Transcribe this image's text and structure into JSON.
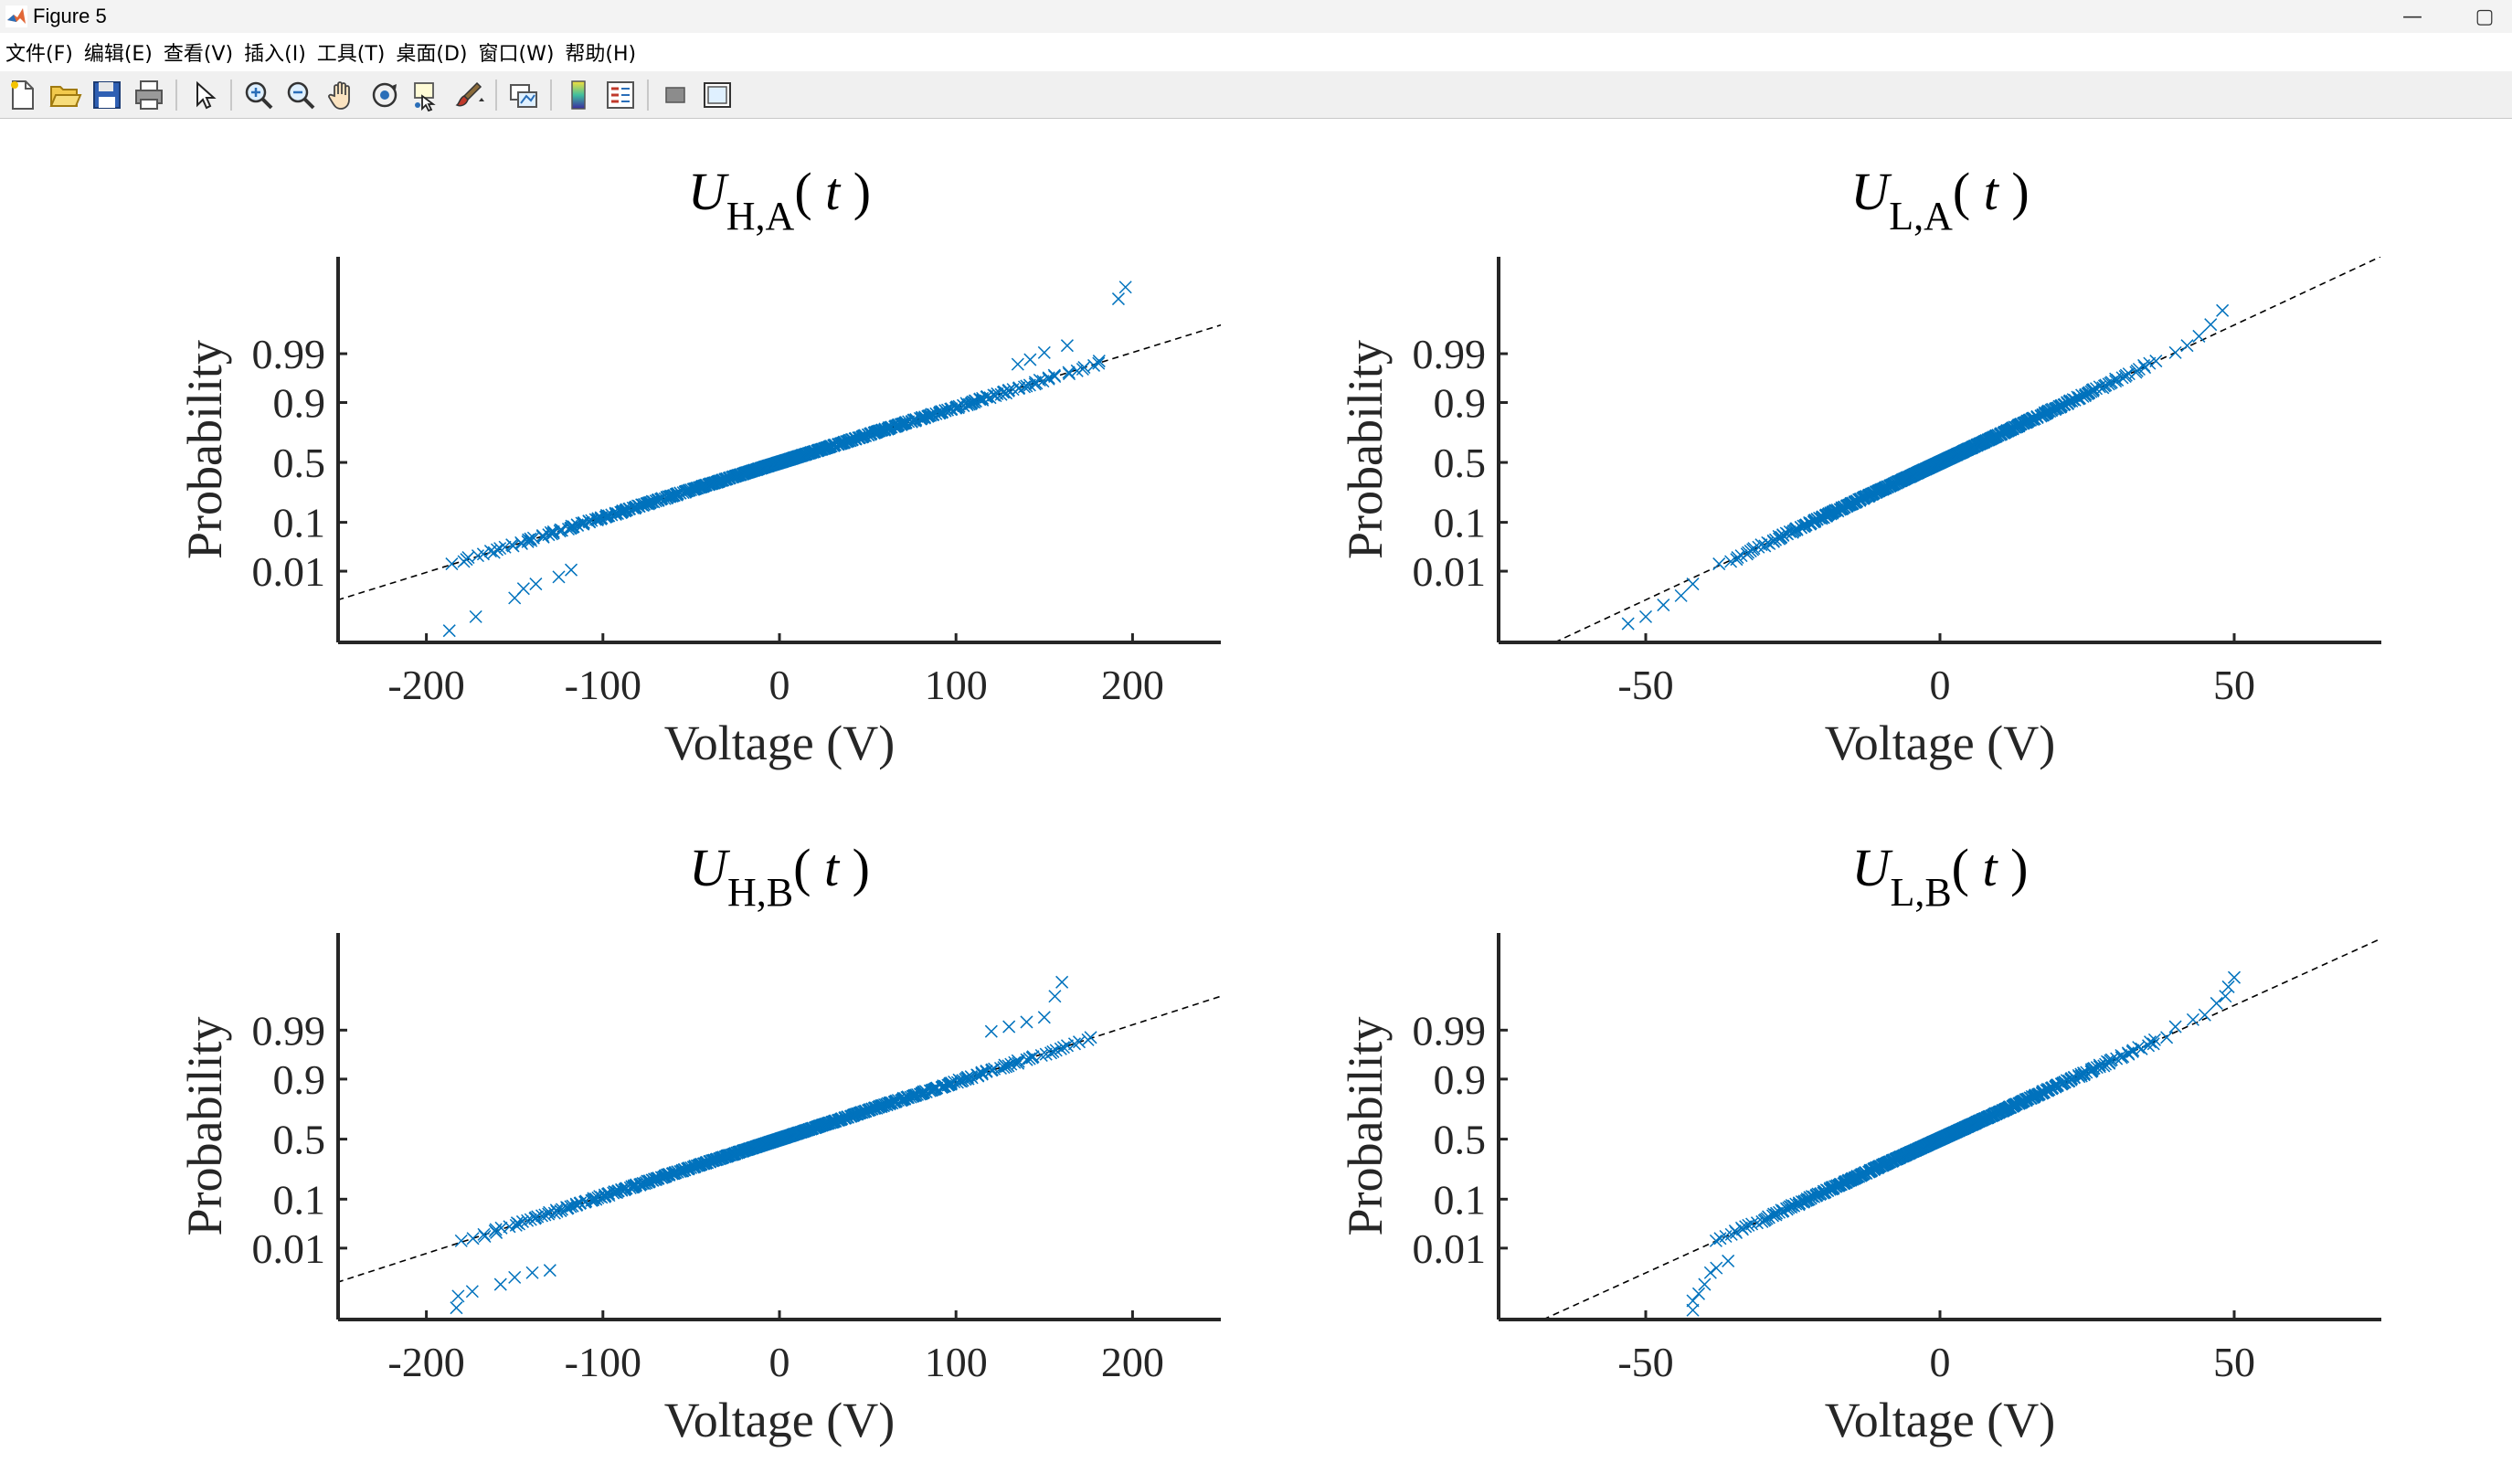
{
  "window": {
    "title": "Figure 5",
    "controls": {
      "minimize": "—",
      "maximize": "▢"
    }
  },
  "menu": {
    "items": [
      {
        "id": "file",
        "label": "文件(F)"
      },
      {
        "id": "edit",
        "label": "编辑(E)"
      },
      {
        "id": "view",
        "label": "查看(V)"
      },
      {
        "id": "insert",
        "label": "插入(I)"
      },
      {
        "id": "tools",
        "label": "工具(T)"
      },
      {
        "id": "desktop",
        "label": "桌面(D)"
      },
      {
        "id": "window",
        "label": "窗口(W)"
      },
      {
        "id": "help",
        "label": "帮助(H)"
      }
    ]
  },
  "toolbar": {
    "groups": [
      [
        "new-file-icon",
        "open-folder-icon",
        "save-icon",
        "print-icon"
      ],
      [
        "pointer-icon"
      ],
      [
        "zoom-in-icon",
        "zoom-out-icon",
        "pan-hand-icon",
        "rotate-3d-icon",
        "data-cursor-icon",
        "brush-icon"
      ],
      [
        "link-plot-icon"
      ],
      [
        "colorbar-icon",
        "legend-icon"
      ],
      [
        "hide-plot-tools-icon",
        "show-plot-tools-icon"
      ]
    ]
  },
  "colors": {
    "marker": "#0072BD",
    "reference_line": "#000000",
    "axes": "#262626"
  },
  "chart_data": [
    {
      "type": "scatter",
      "subtype": "normal-probability-plot",
      "title": {
        "main": "U",
        "sub": "H,A",
        "arg": "t"
      },
      "xlabel": "Voltage (V)",
      "ylabel": "Probability",
      "xlim": [
        -250,
        250
      ],
      "xticks": [
        -200,
        -100,
        0,
        100,
        200
      ],
      "xtick_labels": [
        "-200",
        "-100",
        "0",
        "100",
        "200"
      ],
      "yticks": [
        0.01,
        0.1,
        0.5,
        0.9,
        0.99
      ],
      "ytick_labels": [
        "0.01",
        "0.1",
        "0.5",
        "0.9",
        "0.99"
      ],
      "marker": "x",
      "n": 500,
      "mu": 0,
      "sigma": 85,
      "reference_line": {
        "z_at_0": 0,
        "z_per_unit": 0.01176
      },
      "tail_points": [
        [
          -187,
          -3.6
        ],
        [
          -172,
          -3.3
        ],
        [
          -150,
          -2.9
        ],
        [
          -145,
          -2.7
        ],
        [
          -138,
          -2.6
        ],
        [
          -125,
          -2.45
        ],
        [
          -118,
          -2.3
        ],
        [
          135,
          2.1
        ],
        [
          142,
          2.2
        ],
        [
          150,
          2.35
        ],
        [
          163,
          2.5
        ],
        [
          192,
          3.5
        ],
        [
          196,
          3.75
        ]
      ]
    },
    {
      "type": "scatter",
      "subtype": "normal-probability-plot",
      "title": {
        "main": "U",
        "sub": "L,A",
        "arg": "t"
      },
      "xlabel": "Voltage (V)",
      "ylabel": "Probability",
      "xlim": [
        -75,
        75
      ],
      "xticks": [
        -50,
        0,
        50
      ],
      "xtick_labels": [
        "-50",
        "0",
        "50"
      ],
      "yticks": [
        0.01,
        0.1,
        0.5,
        0.9,
        0.99
      ],
      "ytick_labels": [
        "0.01",
        "0.1",
        "0.5",
        "0.9",
        "0.99"
      ],
      "marker": "x",
      "n": 500,
      "mu": 0,
      "sigma": 17,
      "reference_line": {
        "z_at_0": 0,
        "z_per_unit": 0.0588
      },
      "tail_points": [
        [
          -53,
          -3.45
        ],
        [
          -50,
          -3.3
        ],
        [
          -47,
          -3.05
        ],
        [
          -44,
          -2.85
        ],
        [
          -42,
          -2.6
        ],
        [
          40,
          2.35
        ],
        [
          42,
          2.5
        ],
        [
          44,
          2.7
        ],
        [
          46,
          2.95
        ],
        [
          48,
          3.25
        ]
      ]
    },
    {
      "type": "scatter",
      "subtype": "normal-probability-plot",
      "title": {
        "main": "U",
        "sub": "H,B",
        "arg": "t"
      },
      "xlabel": "Voltage (V)",
      "ylabel": "Probability",
      "xlim": [
        -250,
        250
      ],
      "xticks": [
        -200,
        -100,
        0,
        100,
        200
      ],
      "xtick_labels": [
        "-200",
        "-100",
        "0",
        "100",
        "200"
      ],
      "yticks": [
        0.01,
        0.1,
        0.5,
        0.9,
        0.99
      ],
      "ytick_labels": [
        "0.01",
        "0.1",
        "0.5",
        "0.9",
        "0.99"
      ],
      "marker": "x",
      "n": 500,
      "mu": 0,
      "sigma": 82,
      "reference_line": {
        "z_at_0": 0,
        "z_per_unit": 0.0122
      },
      "tail_points": [
        [
          -183,
          -3.6
        ],
        [
          -182,
          -3.35
        ],
        [
          -174,
          -3.25
        ],
        [
          -158,
          -3.1
        ],
        [
          -150,
          -2.95
        ],
        [
          -140,
          -2.85
        ],
        [
          -130,
          -2.8
        ],
        [
          120,
          2.3
        ],
        [
          130,
          2.4
        ],
        [
          140,
          2.5
        ],
        [
          150,
          2.6
        ],
        [
          156,
          3.05
        ],
        [
          160,
          3.35
        ]
      ]
    },
    {
      "type": "scatter",
      "subtype": "normal-probability-plot",
      "title": {
        "main": "U",
        "sub": "L,B",
        "arg": "t"
      },
      "xlabel": "Voltage (V)",
      "ylabel": "Probability",
      "xlim": [
        -75,
        75
      ],
      "xticks": [
        -50,
        0,
        50
      ],
      "xtick_labels": [
        "-50",
        "0",
        "50"
      ],
      "yticks": [
        0.01,
        0.1,
        0.5,
        0.9,
        0.99
      ],
      "ytick_labels": [
        "0.01",
        "0.1",
        "0.5",
        "0.9",
        "0.99"
      ],
      "marker": "x",
      "n": 500,
      "mu": 0,
      "sigma": 17.5,
      "reference_line": {
        "z_at_0": 0,
        "z_per_unit": 0.0571
      },
      "tail_points": [
        [
          -42,
          -3.65
        ],
        [
          -42,
          -3.45
        ],
        [
          -41,
          -3.3
        ],
        [
          -40,
          -3.1
        ],
        [
          -39,
          -2.85
        ],
        [
          -38,
          -2.75
        ],
        [
          -36,
          -2.6
        ],
        [
          40,
          2.4
        ],
        [
          43,
          2.55
        ],
        [
          45,
          2.65
        ],
        [
          47,
          2.9
        ],
        [
          48.5,
          3.05
        ],
        [
          49,
          3.25
        ],
        [
          50,
          3.45
        ]
      ]
    }
  ]
}
